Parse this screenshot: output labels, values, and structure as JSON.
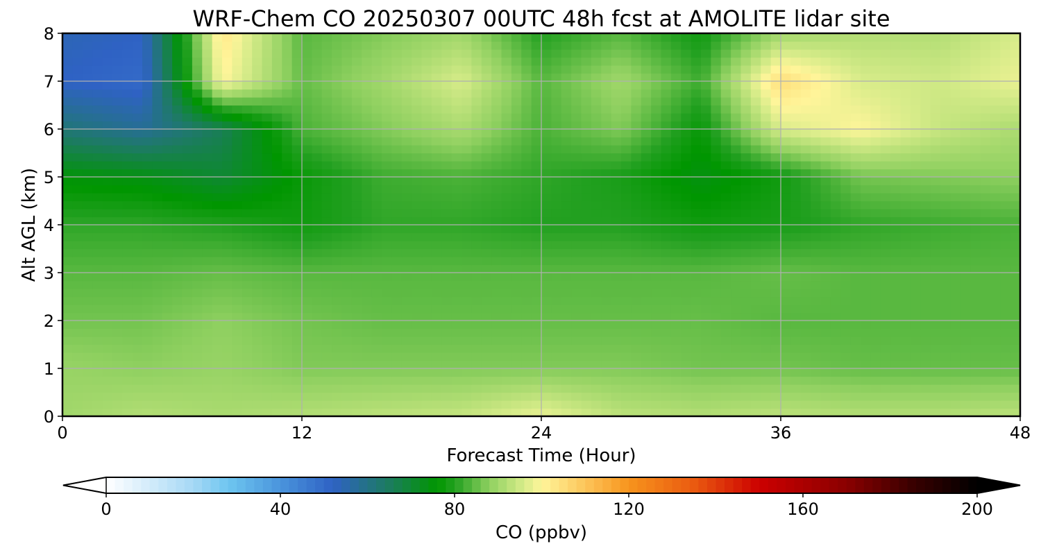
{
  "chart_data": {
    "type": "heatmap",
    "title": "WRF-Chem CO  20250307 00UTC 48h fcst at AMOLITE lidar site",
    "xlabel": "Forecast Time (Hour)",
    "ylabel": "Alt AGL (km)",
    "xlim": [
      0,
      48
    ],
    "ylim": [
      0,
      8
    ],
    "x_ticks": [
      "0",
      "12",
      "24",
      "36",
      "48"
    ],
    "y_ticks": [
      "0",
      "1",
      "2",
      "3",
      "4",
      "5",
      "6",
      "7",
      "8"
    ],
    "grid": true,
    "x": [
      0,
      4,
      8,
      12,
      16,
      20,
      24,
      28,
      32,
      36,
      40,
      44,
      48
    ],
    "y": [
      0,
      1,
      2,
      3,
      4,
      5,
      6,
      7,
      8
    ],
    "values": [
      [
        90,
        92,
        91,
        92,
        93,
        94,
        98,
        93,
        92,
        93,
        92,
        92,
        93
      ],
      [
        89,
        88,
        89,
        87,
        87,
        87,
        87,
        87,
        86,
        86,
        85,
        85,
        85
      ],
      [
        86,
        86,
        88,
        86,
        85,
        85,
        85,
        85,
        85,
        84,
        84,
        84,
        84
      ],
      [
        84,
        84,
        85,
        84,
        84,
        84,
        84,
        84,
        84,
        85,
        84,
        84,
        84
      ],
      [
        81,
        81,
        80,
        78,
        81,
        81,
        80,
        80,
        78,
        79,
        81,
        82,
        83
      ],
      [
        75,
        74,
        70,
        77,
        82,
        83,
        81,
        79,
        74,
        78,
        86,
        87,
        88
      ],
      [
        62,
        58,
        66,
        83,
        87,
        91,
        83,
        87,
        77,
        96,
        100,
        94,
        91
      ],
      [
        52,
        50,
        100,
        85,
        90,
        96,
        84,
        90,
        82,
        105,
        96,
        95,
        98
      ],
      [
        54,
        52,
        103,
        84,
        87,
        90,
        80,
        84,
        78,
        90,
        92,
        92,
        96
      ]
    ],
    "colorbar": {
      "label": "CO  (ppbv)",
      "min": 0,
      "max": 200,
      "ticks": [
        "0",
        "40",
        "80",
        "120",
        "160",
        "200"
      ],
      "extend": "both",
      "stops": [
        {
          "v": 0,
          "c": "#ffffff"
        },
        {
          "v": 20,
          "c": "#a6d8f5"
        },
        {
          "v": 28,
          "c": "#6ec6f0"
        },
        {
          "v": 40,
          "c": "#4a94dc"
        },
        {
          "v": 52,
          "c": "#2f62c4"
        },
        {
          "v": 64,
          "c": "#1e7a66"
        },
        {
          "v": 76,
          "c": "#009600"
        },
        {
          "v": 80,
          "c": "#22a020"
        },
        {
          "v": 88,
          "c": "#8fd060"
        },
        {
          "v": 96,
          "c": "#d8ec8a"
        },
        {
          "v": 100,
          "c": "#fff59a"
        },
        {
          "v": 110,
          "c": "#fcc55a"
        },
        {
          "v": 120,
          "c": "#f7941d"
        },
        {
          "v": 135,
          "c": "#ea5a10"
        },
        {
          "v": 150,
          "c": "#cc0000"
        },
        {
          "v": 170,
          "c": "#8a0000"
        },
        {
          "v": 185,
          "c": "#3a0000"
        },
        {
          "v": 200,
          "c": "#000000"
        }
      ],
      "under_color": "#ffffff",
      "over_color": "#000000"
    }
  }
}
